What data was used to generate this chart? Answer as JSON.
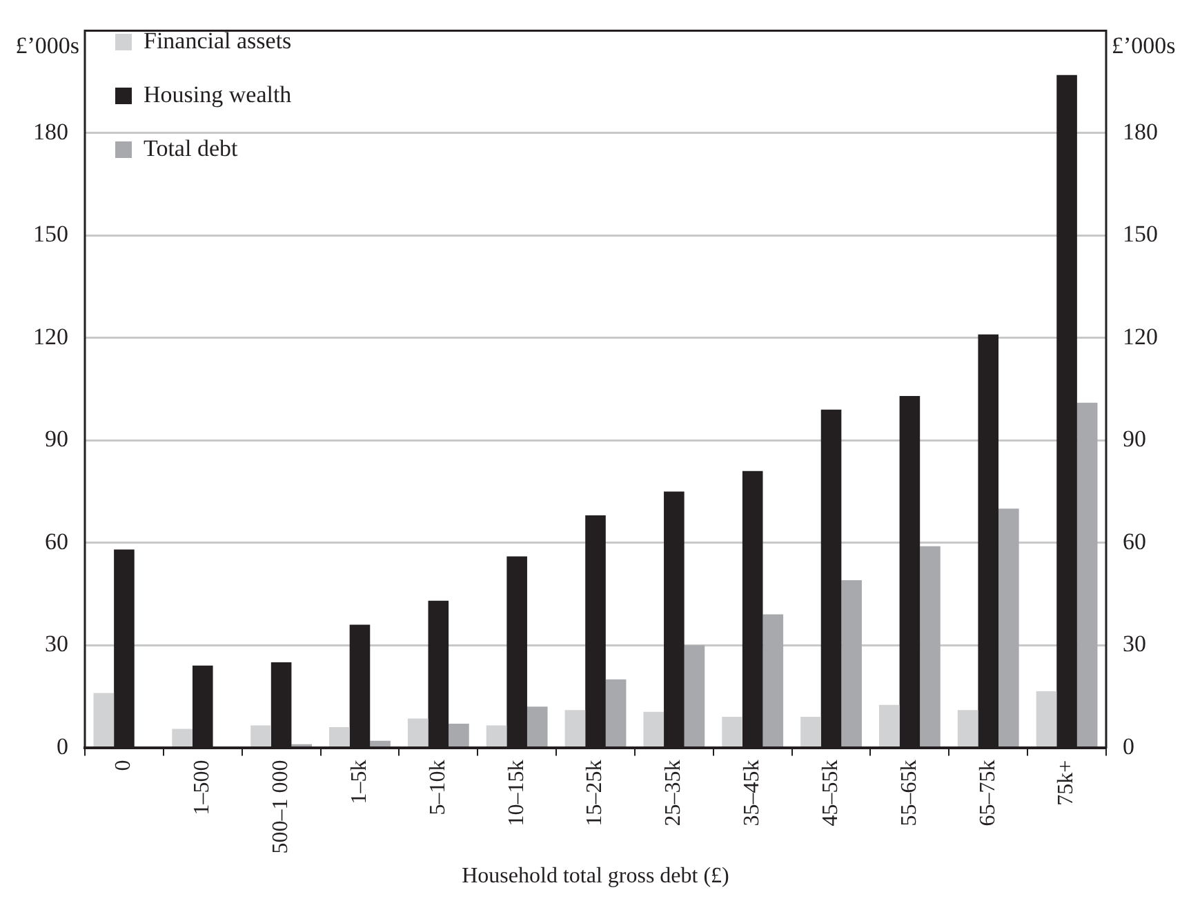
{
  "chart_data": {
    "type": "bar",
    "xlabel": "Household total gross debt (£)",
    "ylabel": "£’000s",
    "y2label": "£’000s",
    "categories": [
      "0",
      "1–500",
      "500–1 000",
      "1–5k",
      "5–10k",
      "10–15k",
      "15–25k",
      "25–35k",
      "35–45k",
      "45–55k",
      "55–65k",
      "65–75k",
      "75k+"
    ],
    "series": [
      {
        "name": "Financial assets",
        "color": "#d1d2d4",
        "values": [
          16,
          5.5,
          6.5,
          6,
          8.5,
          6.5,
          11,
          10.5,
          9,
          9,
          12.5,
          11,
          16.5
        ]
      },
      {
        "name": "Housing wealth",
        "color": "#231f20",
        "values": [
          58,
          24,
          25,
          36,
          43,
          56,
          68,
          75,
          81,
          99,
          103,
          121,
          197
        ]
      },
      {
        "name": "Total debt",
        "color": "#a7a9ac",
        "values": [
          0,
          0,
          1,
          2,
          7,
          12,
          20,
          30,
          39,
          49,
          59,
          70,
          101
        ]
      }
    ],
    "ylim": [
      0,
      210
    ],
    "yticks": [
      0,
      30,
      60,
      90,
      120,
      150,
      180
    ],
    "y2lim": [
      0,
      210
    ],
    "y2ticks": [
      0,
      30,
      60,
      90,
      120,
      150,
      180
    ],
    "grid": "y",
    "legend": "top left"
  }
}
